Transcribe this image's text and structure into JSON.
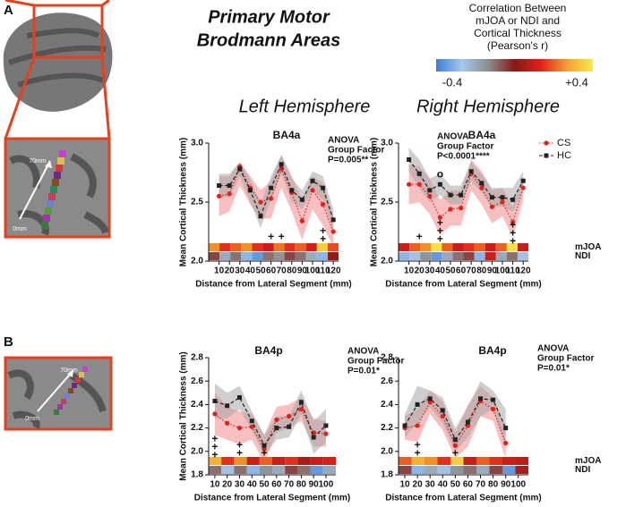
{
  "panel_labels": [
    "A",
    "B"
  ],
  "title": [
    "Primary Motor",
    "Brodmann Areas"
  ],
  "colorbar": {
    "title": [
      "Correlation Between",
      "mJOA or NDI and",
      "Cortical Thickness",
      "(Pearson's r)"
    ],
    "ticks": [
      -0.4,
      {
        "value": 0.4,
        "label": "+0.4"
      }
    ],
    "colormap": [
      "#3b7fd6",
      "#a6c8ec",
      "#8c8c8c",
      "#8a1818",
      "#e0201a",
      "#f5a02a",
      "#f6ea4c"
    ]
  },
  "hemisphere_labels": [
    "Left Hemisphere",
    "Right Hemisphere"
  ],
  "brain_labels": {
    "A": [
      "70mm",
      "0mm"
    ],
    "B": [
      "70mm",
      "0mm"
    ]
  },
  "chart_data": [
    {
      "type": "line",
      "title": "BA4a",
      "annotation": [
        "ANOVA",
        "Group Factor",
        "P=0.005**"
      ],
      "xlabel": "Distance from Lateral Segment (mm)",
      "ylabel": "Mean Cortical Thickness (mm)",
      "x": [
        10,
        20,
        30,
        40,
        50,
        60,
        70,
        80,
        90,
        100,
        110,
        120
      ],
      "xlim": [
        0,
        125
      ],
      "xticks": [
        10,
        20,
        30,
        40,
        50,
        60,
        70,
        80,
        90,
        100,
        110,
        120
      ],
      "ylim": [
        2.0,
        3.0
      ],
      "yticks": [
        {
          "value": 2.0,
          "label": "2.0"
        },
        2.5,
        {
          "value": 3.0,
          "label": "3.0"
        }
      ],
      "series": [
        {
          "color": "#e0201a",
          "band_color": "#f08a8a",
          "values": [
            2.55,
            2.57,
            2.8,
            2.62,
            2.5,
            2.53,
            2.78,
            2.58,
            2.34,
            2.6,
            2.48,
            2.25
          ],
          "upper": [
            2.72,
            2.72,
            2.84,
            2.72,
            2.6,
            2.68,
            2.9,
            2.72,
            2.52,
            2.72,
            2.66,
            2.38
          ],
          "lower": [
            2.38,
            2.42,
            2.64,
            2.48,
            2.36,
            2.36,
            2.62,
            2.42,
            2.18,
            2.44,
            2.3,
            2.12
          ]
        },
        {
          "color": "#222222",
          "band_color": "#a8a8a8",
          "values": [
            2.64,
            2.64,
            2.78,
            2.6,
            2.38,
            2.62,
            2.82,
            2.6,
            2.52,
            2.68,
            2.62,
            2.35
          ],
          "upper": [
            2.74,
            2.74,
            2.84,
            2.7,
            2.48,
            2.72,
            2.9,
            2.7,
            2.6,
            2.76,
            2.72,
            2.44
          ],
          "lower": [
            2.54,
            2.54,
            2.72,
            2.5,
            2.28,
            2.52,
            2.74,
            2.5,
            2.44,
            2.6,
            2.52,
            2.26
          ]
        }
      ],
      "strips": [
        {
          "values": [
            0.25,
            0.15,
            0.2,
            0.25,
            0.15,
            0.1,
            0.22,
            0.15,
            0.2,
            0.12,
            0.35,
            0.18
          ]
        },
        {
          "values": [
            -0.05,
            -0.2,
            -0.1,
            -0.3,
            -0.35,
            -0.1,
            -0.15,
            -0.05,
            -0.1,
            -0.2,
            -0.3,
            0.02
          ]
        }
      ],
      "markers": [
        {
          "x": 60,
          "y": 2.2,
          "label": "+"
        },
        {
          "x": 70,
          "y": 2.2,
          "label": "+"
        },
        {
          "x": 110,
          "y": 2.25,
          "label": "++"
        }
      ]
    },
    {
      "type": "line",
      "title": "BA4a",
      "annotation": [
        "ANOVA",
        "Group Factor",
        "P<0.0001****"
      ],
      "xlabel": "Distance from Lateral Segment (mm)",
      "ylabel": "Mean Cortical Thickness (mm)",
      "x": [
        10,
        20,
        30,
        40,
        50,
        60,
        70,
        80,
        90,
        100,
        110,
        120
      ],
      "xlim": [
        0,
        125
      ],
      "xticks": [
        10,
        20,
        30,
        40,
        50,
        60,
        70,
        80,
        90,
        100,
        110,
        120
      ],
      "ylim": [
        2.0,
        3.0
      ],
      "yticks": [
        {
          "value": 2.0,
          "label": "2.0"
        },
        2.5,
        {
          "value": 3.0,
          "label": "3.0"
        }
      ],
      "legend": "upper right",
      "series": [
        {
          "name": "CS",
          "color": "#e0201a",
          "band_color": "#f08a8a",
          "values": [
            2.65,
            2.65,
            2.55,
            2.37,
            2.44,
            2.45,
            2.74,
            2.62,
            2.46,
            2.5,
            2.33,
            2.62
          ],
          "upper": [
            2.82,
            2.8,
            2.7,
            2.52,
            2.6,
            2.6,
            2.86,
            2.76,
            2.6,
            2.62,
            2.46,
            2.72
          ],
          "lower": [
            2.48,
            2.5,
            2.4,
            2.22,
            2.3,
            2.3,
            2.6,
            2.48,
            2.32,
            2.38,
            2.2,
            2.52
          ]
        },
        {
          "name": "HC",
          "color": "#222222",
          "band_color": "#a8a8a8",
          "values": [
            2.86,
            2.74,
            2.6,
            2.65,
            2.56,
            2.56,
            2.76,
            2.66,
            2.54,
            2.54,
            2.52,
            2.68
          ],
          "upper": [
            2.96,
            2.86,
            2.7,
            2.74,
            2.64,
            2.64,
            2.84,
            2.74,
            2.62,
            2.62,
            2.62,
            2.76
          ],
          "lower": [
            2.76,
            2.62,
            2.5,
            2.56,
            2.48,
            2.48,
            2.68,
            2.58,
            2.46,
            2.46,
            2.42,
            2.6
          ]
        }
      ],
      "strips": [
        {
          "name": "mJOA",
          "values": [
            0.1,
            0.2,
            0.25,
            0.38,
            0.2,
            0.1,
            0.15,
            0.2,
            0.1,
            0.2,
            0.38,
            0.1
          ]
        },
        {
          "name": "NDI",
          "values": [
            -0.3,
            -0.25,
            -0.15,
            -0.35,
            -0.2,
            -0.1,
            -0.05,
            -0.3,
            0.1,
            -0.2,
            -0.1,
            -0.25
          ]
        }
      ],
      "markers": [
        {
          "x": 20,
          "y": 2.2,
          "label": "+"
        },
        {
          "x": 40,
          "y": 2.73,
          "label": "o"
        },
        {
          "x": 40,
          "y": 2.32,
          "label": "+++"
        },
        {
          "x": 110,
          "y": 2.3,
          "label": "+++"
        }
      ]
    },
    {
      "type": "line",
      "title": "BA4p",
      "annotation": [
        "ANOVA",
        "Group Factor",
        "P=0.01*"
      ],
      "xlabel": "Distance from Lateral Segment (mm)",
      "ylabel": "Mean Cortical Thickness (mm)",
      "x": [
        10,
        20,
        30,
        40,
        50,
        60,
        70,
        80,
        90,
        100
      ],
      "xlim": [
        5,
        108
      ],
      "xticks": [
        10,
        20,
        30,
        40,
        50,
        60,
        70,
        80,
        90,
        100
      ],
      "ylim": [
        1.8,
        2.8
      ],
      "yticks": [
        1.8,
        {
          "value": 2.0,
          "label": "2.0"
        },
        2.2,
        2.4,
        2.6,
        2.8
      ],
      "series": [
        {
          "color": "#e0201a",
          "band_color": "#f08a8a",
          "values": [
            2.32,
            2.24,
            2.2,
            2.21,
            2.02,
            2.27,
            2.3,
            2.36,
            2.16,
            2.15
          ],
          "upper": [
            2.5,
            2.38,
            2.34,
            2.32,
            2.14,
            2.38,
            2.4,
            2.46,
            2.28,
            2.26
          ],
          "lower": [
            2.14,
            2.1,
            2.06,
            2.1,
            1.9,
            2.16,
            2.2,
            2.26,
            2.04,
            2.04
          ]
        },
        {
          "color": "#222222",
          "band_color": "#a8a8a8",
          "values": [
            2.43,
            2.39,
            2.46,
            2.26,
            2.05,
            2.2,
            2.21,
            2.42,
            2.12,
            2.22
          ],
          "upper": [
            2.58,
            2.5,
            2.56,
            2.34,
            2.14,
            2.3,
            2.3,
            2.52,
            2.26,
            2.36
          ],
          "lower": [
            2.28,
            2.28,
            2.36,
            2.18,
            1.96,
            2.1,
            2.12,
            2.32,
            1.98,
            2.08
          ]
        }
      ],
      "strips": [
        {
          "values": [
            0.3,
            0.15,
            0.25,
            0.1,
            0.2,
            0.1,
            0.15,
            0.05,
            0.1,
            0.12
          ]
        },
        {
          "values": [
            -0.1,
            -0.25,
            -0.1,
            -0.3,
            -0.15,
            -0.2,
            -0.05,
            -0.1,
            -0.35,
            -0.2
          ]
        }
      ],
      "markers": [
        {
          "x": 10,
          "y": 2.1,
          "label": "+++"
        },
        {
          "x": 30,
          "y": 2.05,
          "label": "++"
        },
        {
          "x": 50,
          "y": 1.98,
          "label": "+"
        }
      ]
    },
    {
      "type": "line",
      "title": "BA4p",
      "annotation": [
        "ANOVA",
        "Group Factor",
        "P=0.01*"
      ],
      "xlabel": "Distance from Lateral Segment (mm)",
      "x": [
        10,
        20,
        30,
        40,
        50,
        60,
        70,
        80,
        90,
        100
      ],
      "xlim": [
        5,
        108
      ],
      "xticks": [
        10,
        20,
        30,
        40,
        50,
        60,
        70,
        80,
        90,
        100
      ],
      "ylim": [
        1.8,
        2.8
      ],
      "yticks": [
        1.8,
        {
          "value": 2.0,
          "label": "2.0"
        },
        2.2,
        2.4,
        2.6,
        2.8
      ],
      "series": [
        {
          "color": "#e0201a",
          "band_color": "#f08a8a",
          "values": [
            2.2,
            2.22,
            2.42,
            2.3,
            2.05,
            2.22,
            2.43,
            2.36,
            2.07,
            null
          ],
          "upper": [
            2.3,
            2.36,
            2.52,
            2.42,
            2.16,
            2.4,
            2.56,
            2.46,
            2.2,
            null
          ],
          "lower": [
            2.1,
            2.08,
            2.32,
            2.18,
            1.94,
            2.04,
            2.3,
            2.26,
            1.94,
            null
          ]
        },
        {
          "color": "#222222",
          "band_color": "#a8a8a8",
          "values": [
            2.22,
            2.4,
            2.45,
            2.35,
            2.1,
            2.25,
            2.45,
            2.44,
            2.2,
            null
          ],
          "upper": [
            2.32,
            2.56,
            2.52,
            2.46,
            2.2,
            2.38,
            2.6,
            2.52,
            2.36,
            null
          ],
          "lower": [
            2.12,
            2.24,
            2.38,
            2.24,
            2.0,
            2.12,
            2.3,
            2.36,
            2.04,
            null
          ]
        }
      ],
      "strips": [
        {
          "name": "mJOA",
          "values": [
            0.2,
            0.3,
            0.25,
            0.15,
            0.35,
            0.1,
            0.2,
            0.15,
            0.1,
            0.08
          ]
        },
        {
          "name": "NDI",
          "values": [
            -0.05,
            -0.3,
            -0.2,
            -0.25,
            -0.15,
            -0.1,
            -0.2,
            -0.05,
            -0.35,
            0.05
          ]
        }
      ],
      "markers": [
        {
          "x": 20,
          "y": 2.05,
          "label": "++"
        },
        {
          "x": 50,
          "y": 1.98,
          "label": "+"
        }
      ]
    }
  ]
}
